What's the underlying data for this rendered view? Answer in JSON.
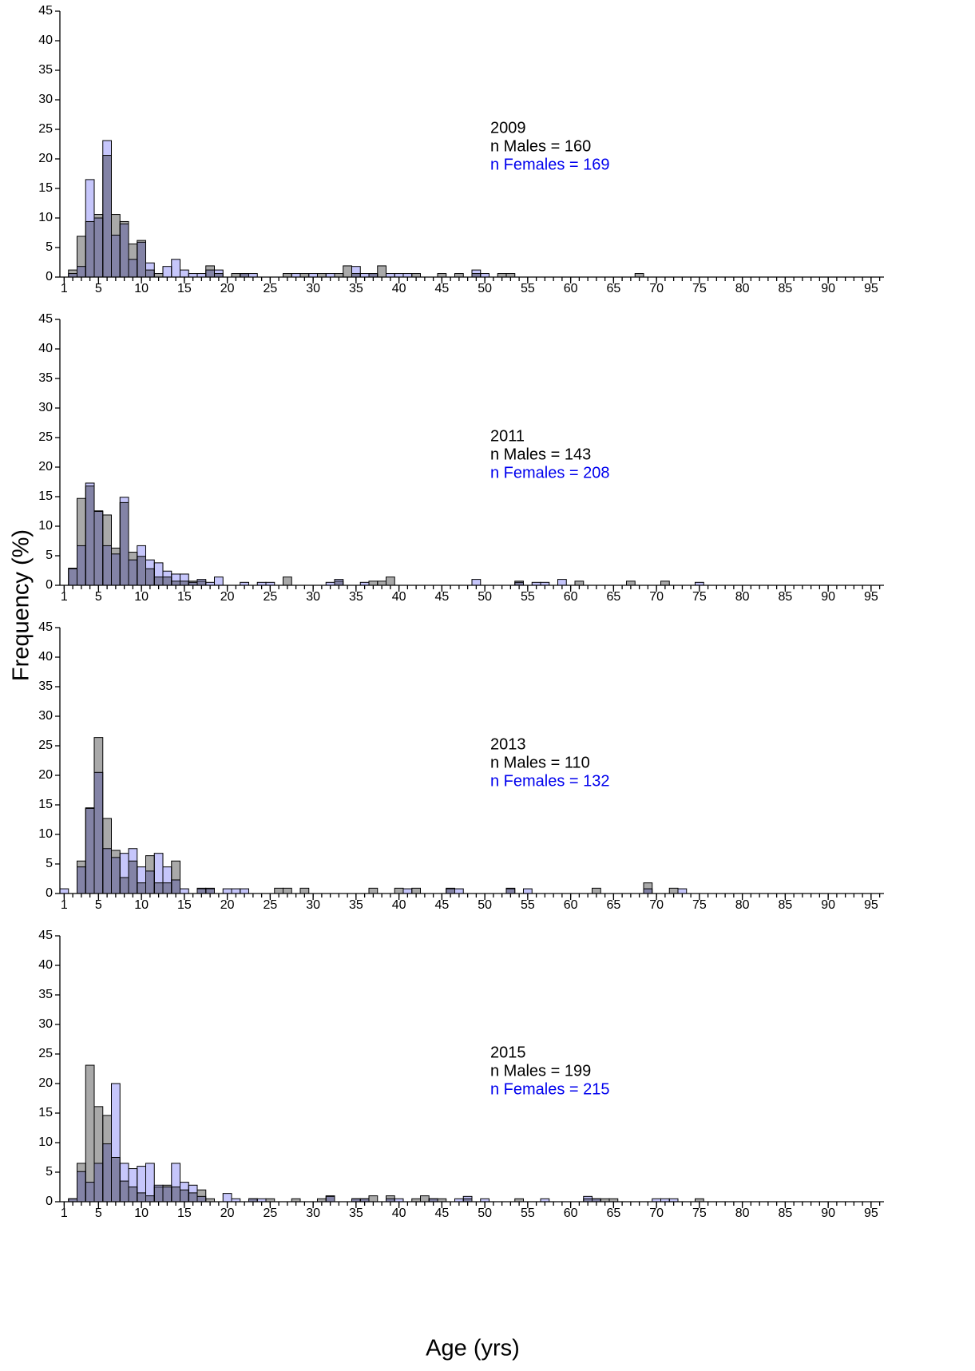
{
  "figure": {
    "xlabel": "Age (yrs)",
    "ylabel": "Frequency (%)"
  },
  "chart_data": [
    {
      "type": "bar",
      "annotations": [
        {
          "text": "2009",
          "color": "#000000"
        },
        {
          "text": "n Males = 160",
          "color": "#000000"
        },
        {
          "text": "n Females = 169",
          "color": "#0000ee"
        }
      ],
      "x": [
        2,
        3,
        4,
        5,
        6,
        7,
        8,
        9,
        10,
        11,
        12,
        13,
        14,
        15,
        16,
        17,
        18,
        19,
        21,
        22,
        23,
        27,
        28,
        29,
        30,
        31,
        32,
        33,
        34,
        35,
        36,
        37,
        38,
        39,
        40,
        41,
        42,
        45,
        47,
        49,
        50,
        52,
        53,
        68
      ],
      "series": [
        {
          "color": "#a9a9a9",
          "values": [
            1.2,
            6.9,
            9.4,
            10.6,
            20.6,
            10.6,
            9.4,
            5.6,
            6.2,
            1.2,
            0.6,
            0,
            0,
            0,
            0,
            0,
            1.9,
            0.6,
            0.6,
            0.6,
            0,
            0.6,
            0,
            0.6,
            0,
            0.6,
            0,
            0.6,
            1.9,
            0.6,
            0,
            0.6,
            1.9,
            0,
            0,
            0,
            0.6,
            0.6,
            0.6,
            0.6,
            0,
            0.6,
            0.6,
            0.6
          ]
        },
        {
          "color": "#c6c6fb",
          "values": [
            0.6,
            1.8,
            16.5,
            10,
            23.1,
            7.1,
            9.0,
            3.0,
            5.9,
            2.4,
            0,
            1.8,
            3.0,
            1.2,
            0.6,
            0.6,
            1.2,
            1.2,
            0,
            0.6,
            0.6,
            0,
            0.6,
            0,
            0.6,
            0,
            0.6,
            0,
            0,
            1.8,
            0.6,
            0.6,
            0,
            0.6,
            0.6,
            0.6,
            0,
            0,
            0,
            1.2,
            0.6,
            0,
            0,
            0
          ]
        }
      ],
      "xlim": [
        0.5,
        96.5
      ],
      "xticks": [
        1,
        5,
        10,
        15,
        20,
        25,
        30,
        35,
        40,
        45,
        50,
        55,
        60,
        65,
        70,
        75,
        80,
        85,
        90,
        95
      ],
      "minor_xtick_step": 1,
      "ylim": [
        0,
        45
      ],
      "yticks": [
        0,
        5,
        10,
        15,
        20,
        25,
        30,
        35,
        40,
        45
      ]
    },
    {
      "type": "bar",
      "annotations": [
        {
          "text": "2011",
          "color": "#000000"
        },
        {
          "text": "n Males = 143",
          "color": "#000000"
        },
        {
          "text": "n Females = 208",
          "color": "#0000ee"
        }
      ],
      "x": [
        2,
        3,
        4,
        5,
        6,
        7,
        8,
        9,
        10,
        11,
        12,
        13,
        14,
        15,
        16,
        17,
        18,
        19,
        22,
        24,
        25,
        27,
        32,
        33,
        36,
        37,
        38,
        39,
        49,
        54,
        56,
        57,
        59,
        61,
        67,
        71,
        75
      ],
      "series": [
        {
          "color": "#a9a9a9",
          "values": [
            2.8,
            14.7,
            16.8,
            12.6,
            11.9,
            6.3,
            14.0,
            5.6,
            4.9,
            2.8,
            1.4,
            1.4,
            0.7,
            0.7,
            0.7,
            0.7,
            0,
            0,
            0,
            0,
            0,
            1.4,
            0,
            0.7,
            0,
            0.7,
            0.7,
            1.4,
            0,
            0.7,
            0,
            0,
            0,
            0.7,
            0.7,
            0.7,
            0
          ]
        },
        {
          "color": "#c6c6fb",
          "values": [
            2.9,
            6.7,
            17.3,
            12.5,
            6.7,
            5.3,
            14.9,
            4.3,
            6.7,
            4.3,
            3.8,
            2.4,
            1.9,
            1.9,
            0.5,
            1.0,
            0.5,
            1.4,
            0.5,
            0.5,
            0.5,
            0,
            0.5,
            1.0,
            0.5,
            0,
            0,
            0,
            1.0,
            0.5,
            0.5,
            0.5,
            1.0,
            0,
            0,
            0,
            0.5
          ]
        }
      ],
      "xlim": [
        0.5,
        96.5
      ],
      "xticks": [
        1,
        5,
        10,
        15,
        20,
        25,
        30,
        35,
        40,
        45,
        50,
        55,
        60,
        65,
        70,
        75,
        80,
        85,
        90,
        95
      ],
      "minor_xtick_step": 1,
      "ylim": [
        0,
        45
      ],
      "yticks": [
        0,
        5,
        10,
        15,
        20,
        25,
        30,
        35,
        40,
        45
      ]
    },
    {
      "type": "bar",
      "annotations": [
        {
          "text": "2013",
          "color": "#000000"
        },
        {
          "text": "n Males = 110",
          "color": "#000000"
        },
        {
          "text": "n Females = 132",
          "color": "#0000ee"
        }
      ],
      "x": [
        1,
        3,
        4,
        5,
        6,
        7,
        8,
        9,
        10,
        11,
        12,
        13,
        14,
        15,
        17,
        18,
        20,
        21,
        22,
        26,
        27,
        29,
        37,
        40,
        41,
        42,
        46,
        47,
        53,
        55,
        63,
        69,
        72,
        73
      ],
      "series": [
        {
          "color": "#a9a9a9",
          "values": [
            0,
            5.5,
            14.5,
            26.4,
            12.7,
            7.3,
            2.7,
            5.5,
            1.8,
            6.4,
            1.8,
            1.8,
            5.5,
            0,
            0.9,
            0.9,
            0,
            0,
            0,
            0.9,
            0.9,
            0.9,
            0.9,
            0.9,
            0,
            0.9,
            0.9,
            0,
            0.9,
            0,
            0.9,
            1.8,
            0.9,
            0
          ]
        },
        {
          "color": "#c6c6fb",
          "values": [
            0.8,
            4.5,
            14.4,
            20.5,
            7.6,
            6.1,
            6.8,
            7.6,
            4.5,
            3.8,
            6.8,
            4.5,
            2.3,
            0.8,
            0.8,
            0.8,
            0.8,
            0.8,
            0.8,
            0,
            0,
            0,
            0,
            0,
            0.8,
            0,
            0.8,
            0.8,
            0.8,
            0.8,
            0,
            0.8,
            0,
            0.8
          ]
        }
      ],
      "xlim": [
        0.5,
        96.5
      ],
      "xticks": [
        1,
        5,
        10,
        15,
        20,
        25,
        30,
        35,
        40,
        45,
        50,
        55,
        60,
        65,
        70,
        75,
        80,
        85,
        90,
        95
      ],
      "minor_xtick_step": 1,
      "ylim": [
        0,
        45
      ],
      "yticks": [
        0,
        5,
        10,
        15,
        20,
        25,
        30,
        35,
        40,
        45
      ]
    },
    {
      "type": "bar",
      "annotations": [
        {
          "text": "2015",
          "color": "#000000"
        },
        {
          "text": "n Males = 199",
          "color": "#000000"
        },
        {
          "text": "n Females = 215",
          "color": "#0000ee"
        }
      ],
      "x": [
        2,
        3,
        4,
        5,
        6,
        7,
        8,
        9,
        10,
        11,
        12,
        13,
        14,
        15,
        16,
        17,
        18,
        20,
        21,
        23,
        24,
        25,
        28,
        31,
        32,
        35,
        36,
        37,
        39,
        40,
        42,
        43,
        44,
        45,
        47,
        48,
        50,
        54,
        57,
        62,
        63,
        64,
        65,
        70,
        71,
        72,
        75
      ],
      "series": [
        {
          "color": "#a9a9a9",
          "values": [
            0.5,
            6.5,
            23.1,
            16.1,
            14.6,
            7.5,
            3.5,
            2.5,
            1.5,
            1.0,
            2.5,
            2.8,
            2.5,
            2.0,
            1.5,
            2.0,
            0.5,
            0,
            0,
            0.5,
            0,
            0.5,
            0.5,
            0.5,
            1.0,
            0.5,
            0.5,
            1.0,
            1.0,
            0,
            0.5,
            1.0,
            0.5,
            0.5,
            0,
            0.5,
            0,
            0.5,
            0,
            0.5,
            0.5,
            0.5,
            0.5,
            0,
            0,
            0,
            0.5
          ]
        },
        {
          "color": "#c6c6fb",
          "values": [
            0.5,
            5.1,
            3.3,
            6.5,
            9.8,
            20.0,
            6.5,
            5.6,
            6.0,
            6.5,
            2.8,
            2.5,
            6.5,
            3.3,
            2.8,
            0.9,
            0,
            1.4,
            0.5,
            0.5,
            0.5,
            0,
            0,
            0,
            0.9,
            0.5,
            0.5,
            0,
            0.5,
            0.5,
            0,
            0,
            0.5,
            0,
            0.5,
            0.9,
            0.5,
            0,
            0.5,
            0.9,
            0.5,
            0,
            0,
            0.5,
            0.5,
            0.5,
            0
          ]
        }
      ],
      "xlim": [
        0.5,
        96.5
      ],
      "xticks": [
        1,
        5,
        10,
        15,
        20,
        25,
        30,
        35,
        40,
        45,
        50,
        55,
        60,
        65,
        70,
        75,
        80,
        85,
        90,
        95
      ],
      "minor_xtick_step": 1,
      "ylim": [
        0,
        45
      ],
      "yticks": [
        0,
        5,
        10,
        15,
        20,
        25,
        30,
        35,
        40,
        45
      ]
    }
  ]
}
